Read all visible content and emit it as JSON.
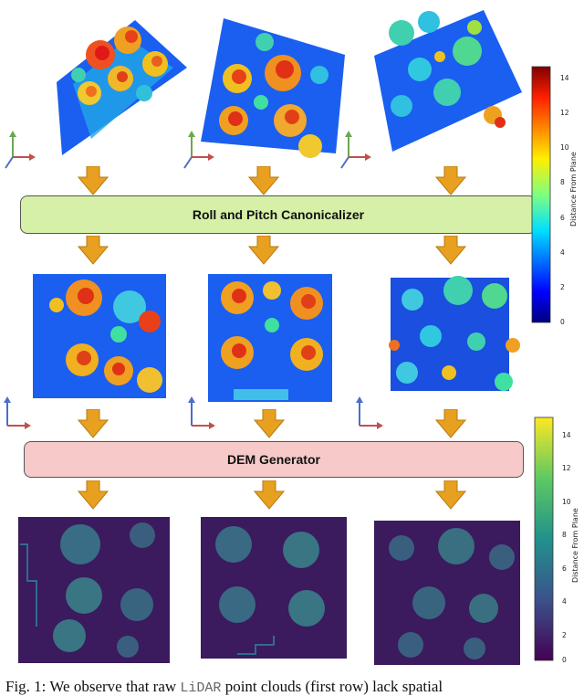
{
  "stages": {
    "canonicalizer": "Roll and Pitch Canonicalizer",
    "dem": "DEM Generator"
  },
  "colorbars": [
    {
      "title": "Distance From Plane",
      "ticks": [
        "14",
        "12",
        "10",
        "8",
        "6",
        "4",
        "2",
        "0"
      ],
      "colormap": "jet"
    },
    {
      "title": "Distance From Plane",
      "ticks": [
        "14",
        "12",
        "10",
        "8",
        "6",
        "4",
        "2",
        "0"
      ],
      "colormap": "viridis"
    }
  ],
  "caption": {
    "prefix": "Fig.  1:  We observe that raw ",
    "mono": "LiDAR",
    "suffix": " point clouds (first row) lack spatial"
  },
  "colors": {
    "arrow": "#e8a020",
    "arrow_edge": "#b87a10",
    "canon_box": "#d7f0a8",
    "dem_box": "#f7c9c9",
    "axis_x": "#c0504d",
    "axis_y": "#6aa84f",
    "axis_z": "#4a6fc9"
  }
}
